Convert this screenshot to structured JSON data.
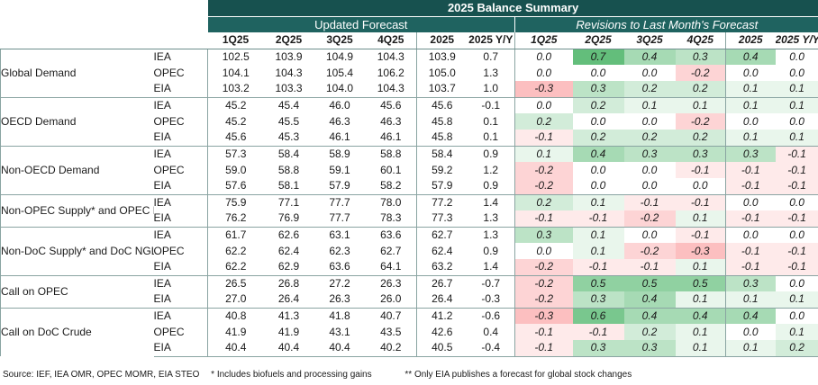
{
  "title": "2025 Balance Summary",
  "groups": {
    "updated": "Updated Forecast",
    "revisions": "Revisions to Last Month's Forecast"
  },
  "columns": [
    "1Q25",
    "2Q25",
    "3Q25",
    "4Q25",
    "2025",
    "2025 Y/Y"
  ],
  "rows": [
    {
      "category": "Global Demand",
      "sources": [
        {
          "src": "IEA",
          "vals": [
            "102.5",
            "103.9",
            "104.9",
            "104.3",
            "103.9",
            "0.7"
          ],
          "revs": [
            "0.0",
            "0.7",
            "0.4",
            "0.3",
            "0.4",
            "0.0"
          ]
        },
        {
          "src": "OPEC",
          "vals": [
            "104.1",
            "104.3",
            "105.4",
            "106.2",
            "105.0",
            "1.3"
          ],
          "revs": [
            "0.0",
            "0.0",
            "0.0",
            "-0.2",
            "0.0",
            "0.0"
          ]
        },
        {
          "src": "EIA",
          "vals": [
            "103.2",
            "103.3",
            "104.0",
            "104.3",
            "103.7",
            "1.0"
          ],
          "revs": [
            "-0.3",
            "0.3",
            "0.2",
            "0.2",
            "0.1",
            "0.1"
          ]
        }
      ]
    },
    {
      "category": "OECD Demand",
      "sources": [
        {
          "src": "IEA",
          "vals": [
            "45.2",
            "45.4",
            "46.0",
            "45.6",
            "45.6",
            "-0.1"
          ],
          "revs": [
            "0.0",
            "0.2",
            "0.1",
            "0.1",
            "0.1",
            "0.1"
          ]
        },
        {
          "src": "OPEC",
          "vals": [
            "45.2",
            "45.5",
            "46.3",
            "46.3",
            "45.8",
            "0.1"
          ],
          "revs": [
            "0.2",
            "0.0",
            "0.0",
            "-0.2",
            "0.0",
            "0.0"
          ]
        },
        {
          "src": "EIA",
          "vals": [
            "45.6",
            "45.3",
            "46.1",
            "46.1",
            "45.8",
            "0.1"
          ],
          "revs": [
            "-0.1",
            "0.2",
            "0.2",
            "0.2",
            "0.1",
            "0.1"
          ]
        }
      ]
    },
    {
      "category": "Non-OECD Demand",
      "sources": [
        {
          "src": "IEA",
          "vals": [
            "57.3",
            "58.4",
            "58.9",
            "58.8",
            "58.4",
            "0.9"
          ],
          "revs": [
            "0.1",
            "0.4",
            "0.3",
            "0.3",
            "0.3",
            "-0.1"
          ]
        },
        {
          "src": "OPEC",
          "vals": [
            "59.0",
            "58.8",
            "59.1",
            "60.1",
            "59.2",
            "1.2"
          ],
          "revs": [
            "-0.2",
            "0.0",
            "0.0",
            "-0.1",
            "-0.1",
            "-0.1"
          ]
        },
        {
          "src": "EIA",
          "vals": [
            "57.6",
            "58.1",
            "57.9",
            "58.2",
            "57.9",
            "0.9"
          ],
          "revs": [
            "-0.2",
            "0.0",
            "0.0",
            "0.0",
            "-0.1",
            "-0.1"
          ]
        }
      ]
    },
    {
      "category": "Non-OPEC Supply* and OPEC NGLs",
      "sources": [
        {
          "src": "IEA",
          "vals": [
            "75.9",
            "77.1",
            "77.7",
            "78.0",
            "77.2",
            "1.4"
          ],
          "revs": [
            "0.2",
            "0.1",
            "-0.1",
            "-0.1",
            "0.0",
            "0.0"
          ]
        },
        {
          "src": "EIA",
          "vals": [
            "76.2",
            "76.9",
            "77.7",
            "78.3",
            "77.3",
            "1.3"
          ],
          "revs": [
            "-0.1",
            "-0.1",
            "-0.2",
            "0.1",
            "-0.1",
            "-0.1"
          ]
        }
      ]
    },
    {
      "category": "Non-DoC Supply* and DoC NGLs",
      "sources": [
        {
          "src": "IEA",
          "vals": [
            "61.7",
            "62.6",
            "63.1",
            "63.6",
            "62.7",
            "1.3"
          ],
          "revs": [
            "0.3",
            "0.1",
            "0.0",
            "-0.1",
            "0.0",
            "0.0"
          ]
        },
        {
          "src": "OPEC",
          "vals": [
            "62.2",
            "62.4",
            "62.3",
            "62.7",
            "62.4",
            "0.9"
          ],
          "revs": [
            "0.0",
            "0.1",
            "-0.2",
            "-0.3",
            "-0.1",
            "-0.1"
          ]
        },
        {
          "src": "EIA",
          "vals": [
            "62.2",
            "62.9",
            "63.6",
            "64.1",
            "63.2",
            "1.4"
          ],
          "revs": [
            "-0.2",
            "-0.1",
            "-0.1",
            "0.1",
            "-0.1",
            "-0.1"
          ]
        }
      ]
    },
    {
      "category": "Call on OPEC",
      "sources": [
        {
          "src": "IEA",
          "vals": [
            "26.5",
            "26.8",
            "27.2",
            "26.3",
            "26.7",
            "-0.7"
          ],
          "revs": [
            "-0.2",
            "0.5",
            "0.5",
            "0.5",
            "0.3",
            "0.0"
          ]
        },
        {
          "src": "EIA",
          "vals": [
            "27.0",
            "26.4",
            "26.3",
            "26.0",
            "26.4",
            "-0.3"
          ],
          "revs": [
            "-0.2",
            "0.3",
            "0.4",
            "0.1",
            "0.1",
            "0.1"
          ]
        }
      ]
    },
    {
      "category": "Call on DoC Crude",
      "sources": [
        {
          "src": "IEA",
          "vals": [
            "40.8",
            "41.3",
            "41.8",
            "40.7",
            "41.2",
            "-0.6"
          ],
          "revs": [
            "-0.3",
            "0.6",
            "0.4",
            "0.4",
            "0.4",
            "0.0"
          ]
        },
        {
          "src": "OPEC",
          "vals": [
            "41.9",
            "41.9",
            "43.1",
            "43.5",
            "42.6",
            "0.4"
          ],
          "revs": [
            "-0.1",
            "-0.1",
            "0.2",
            "0.1",
            "0.0",
            "0.1"
          ]
        },
        {
          "src": "EIA",
          "vals": [
            "40.4",
            "40.4",
            "40.4",
            "40.2",
            "40.5",
            "-0.4"
          ],
          "revs": [
            "-0.1",
            "0.3",
            "0.3",
            "0.1",
            "0.1",
            "0.2"
          ]
        }
      ]
    }
  ],
  "footnotes": {
    "source": "Source: IEF, IEA OMR, OPEC MOMR, EIA STEO",
    "note1": "* Includes biofuels and processing gains",
    "note2": "** Only EIA publishes a forecast for global stock changes"
  },
  "colors": {
    "header_bg": "#17514f",
    "header_sub_bg": "#1f6360",
    "positive": "#63be7b",
    "negative": "#f8696b",
    "neutral": "#ffffff"
  }
}
